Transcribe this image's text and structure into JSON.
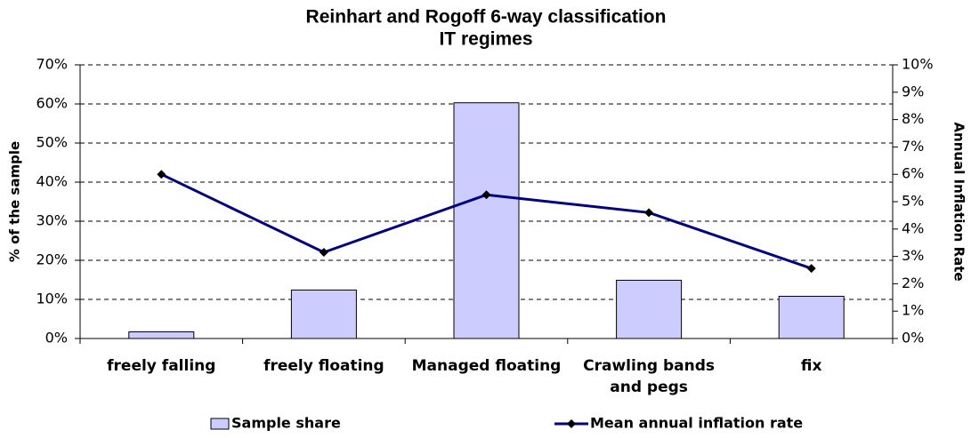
{
  "chart_data": {
    "type": "bar_line",
    "title": "Reinhart and Rogoff 6-way classification",
    "subtitle": "IT regimes",
    "y_label": "% of the sample",
    "y2_label": "Annual Inflation Rate",
    "categories": [
      "freely falling",
      "freely floating",
      "Managed floating",
      "Crawling bands and pegs",
      "fix"
    ],
    "series": [
      {
        "name": "Sample share",
        "type": "bar",
        "color": "#ccccff",
        "values": [
          1.7,
          12.4,
          60.3,
          14.9,
          10.8
        ]
      },
      {
        "name": "Mean annual inflation rate",
        "type": "line",
        "axis": "y2",
        "color": "#000080",
        "values": [
          6.0,
          3.15,
          5.25,
          4.6,
          2.56
        ]
      }
    ],
    "ylim": [
      0,
      70
    ],
    "yticks": [
      {
        "value": 0,
        "label": "0%"
      },
      {
        "value": 10,
        "label": "10%"
      },
      {
        "value": 20,
        "label": "20%"
      },
      {
        "value": 30,
        "label": "30%"
      },
      {
        "value": 40,
        "label": "40%"
      },
      {
        "value": 50,
        "label": "50%"
      },
      {
        "value": 60,
        "label": "60%"
      },
      {
        "value": 70,
        "label": "70%"
      }
    ],
    "y2lim": [
      0,
      10
    ],
    "y2ticks": [
      {
        "value": 0,
        "label": "0%"
      },
      {
        "value": 1,
        "label": "1%"
      },
      {
        "value": 2,
        "label": "2%"
      },
      {
        "value": 3,
        "label": "3%"
      },
      {
        "value": 4,
        "label": "4%"
      },
      {
        "value": 5,
        "label": "5%"
      },
      {
        "value": 6,
        "label": "6%"
      },
      {
        "value": 7,
        "label": "7%"
      },
      {
        "value": 8,
        "label": "8%"
      },
      {
        "value": 9,
        "label": "9%"
      },
      {
        "value": 10,
        "label": "10%"
      }
    ],
    "grid": true,
    "legend": "bottom"
  }
}
